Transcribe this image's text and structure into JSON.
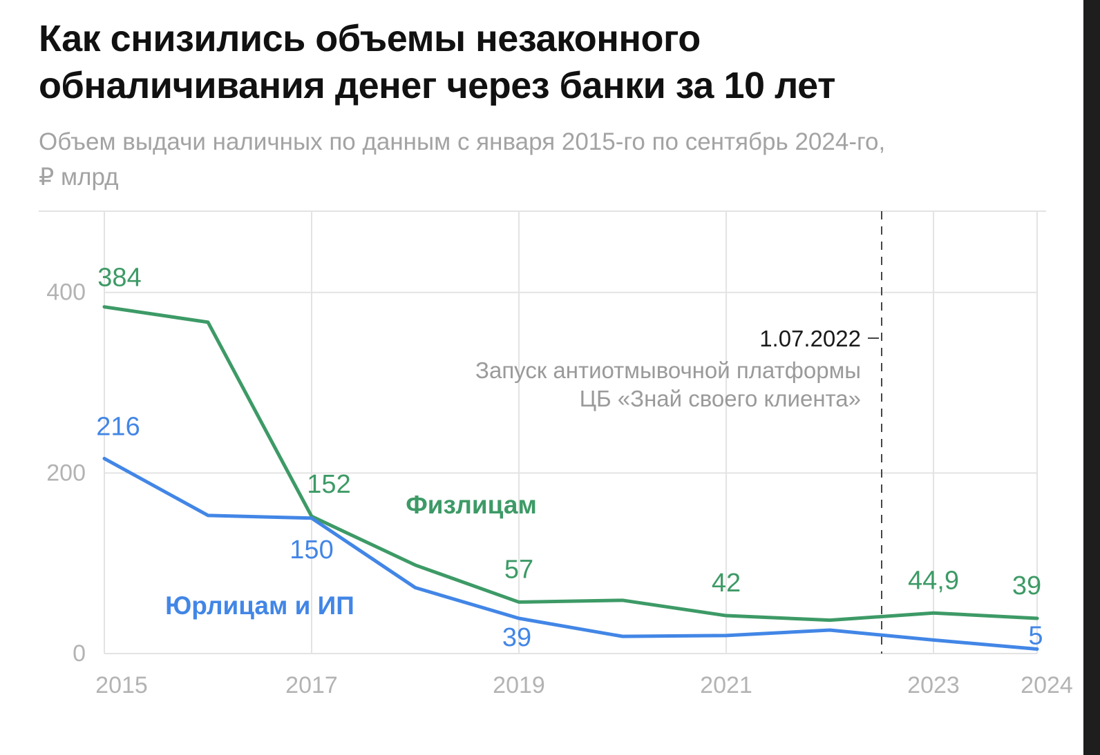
{
  "header": {
    "title_lines": [
      "Как снизились объемы незаконного",
      "обналичивания денег через банки за 10 лет"
    ],
    "subtitle_lines": [
      "Объем выдачи наличных по данным с января 2015-го по сентябрь 2024-го,",
      "₽ млрд"
    ]
  },
  "chart_data": {
    "type": "line",
    "title": "Как снизились объемы незаконного обналичивания денег через банки за 10 лет",
    "subtitle": "Объем выдачи наличных по данным с января 2015-го по сентябрь 2024-го, ₽ млрд",
    "xlabel": "",
    "ylabel": "",
    "x": [
      2015,
      2016,
      2017,
      2018,
      2019,
      2020,
      2021,
      2022,
      2023,
      2024
    ],
    "xlim": [
      2015,
      2024.2
    ],
    "ylim": [
      0,
      490
    ],
    "y_ticks": [
      0,
      200,
      400
    ],
    "x_tick_labels": [
      "2015",
      "2017",
      "2019",
      "2021",
      "2023",
      "2024"
    ],
    "x_tick_values": [
      2015,
      2017,
      2019,
      2021,
      2023,
      2024
    ],
    "grid": true,
    "colors": {
      "green": "#3d9a66",
      "blue": "#4286e6",
      "grid": "#e3e3e3"
    },
    "series": [
      {
        "name": "Физлицам",
        "color": "#3d9a66",
        "values": [
          384,
          367,
          152,
          98,
          57,
          59,
          42,
          37,
          44.9,
          39
        ],
        "data_labels": [
          {
            "index": 0,
            "text": "384"
          },
          {
            "index": 2,
            "text": "152"
          },
          {
            "index": 4,
            "text": "57"
          },
          {
            "index": 6,
            "text": "42"
          },
          {
            "index": 8,
            "text": "44,9"
          },
          {
            "index": 9,
            "text": "39"
          }
        ]
      },
      {
        "name": "Юрлицам и ИП",
        "color": "#4286e6",
        "values": [
          216,
          153,
          150,
          73,
          39,
          19,
          20,
          26,
          15,
          5
        ],
        "data_labels": [
          {
            "index": 0,
            "text": "216"
          },
          {
            "index": 2,
            "text": "150"
          },
          {
            "index": 4,
            "text": "39"
          },
          {
            "index": 9,
            "text": "5"
          }
        ]
      }
    ],
    "annotation": {
      "x": 2022.5,
      "date": "1.07.2022",
      "text_lines": [
        "Запуск антиотмывочной платформы",
        "ЦБ «Знай своего клиента»"
      ]
    }
  }
}
